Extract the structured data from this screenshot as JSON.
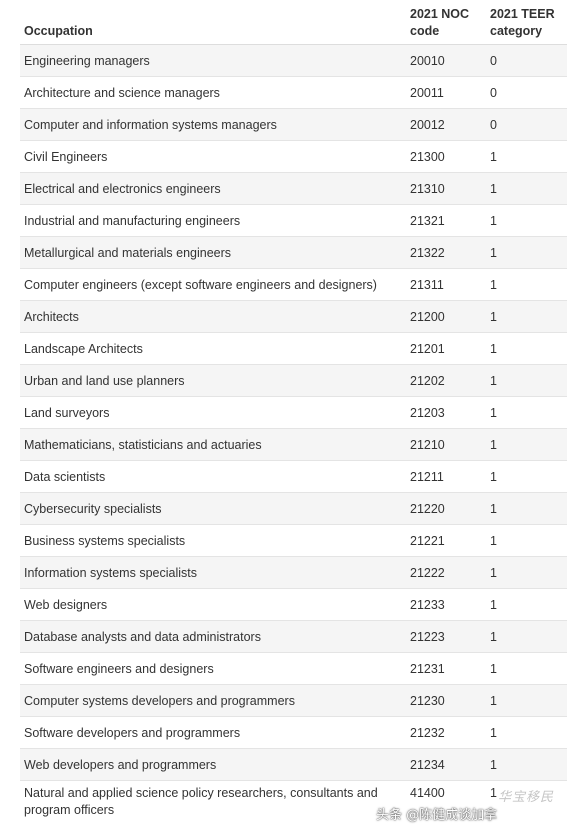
{
  "table": {
    "headers": {
      "occupation": "Occupation",
      "noc_code": "2021 NOC code",
      "teer": "2021 TEER category"
    },
    "rows": [
      {
        "occupation": "Engineering managers",
        "noc_code": "20010",
        "teer": "0"
      },
      {
        "occupation": "Architecture and science managers",
        "noc_code": "20011",
        "teer": "0"
      },
      {
        "occupation": "Computer and information systems managers",
        "noc_code": "20012",
        "teer": "0"
      },
      {
        "occupation": "Civil Engineers",
        "noc_code": "21300",
        "teer": "1"
      },
      {
        "occupation": "Electrical and electronics engineers",
        "noc_code": "21310",
        "teer": "1"
      },
      {
        "occupation": "Industrial and manufacturing engineers",
        "noc_code": "21321",
        "teer": "1"
      },
      {
        "occupation": "Metallurgical and materials engineers",
        "noc_code": "21322",
        "teer": "1"
      },
      {
        "occupation": "Computer engineers (except software engineers and designers)",
        "noc_code": "21311",
        "teer": "1"
      },
      {
        "occupation": "Architects",
        "noc_code": "21200",
        "teer": "1"
      },
      {
        "occupation": "Landscape Architects",
        "noc_code": "21201",
        "teer": "1"
      },
      {
        "occupation": "Urban and land use planners",
        "noc_code": "21202",
        "teer": "1"
      },
      {
        "occupation": "Land surveyors",
        "noc_code": "21203",
        "teer": "1"
      },
      {
        "occupation": "Mathematicians, statisticians and actuaries",
        "noc_code": "21210",
        "teer": "1"
      },
      {
        "occupation": "Data scientists",
        "noc_code": "21211",
        "teer": "1"
      },
      {
        "occupation": "Cybersecurity specialists",
        "noc_code": "21220",
        "teer": "1"
      },
      {
        "occupation": "Business systems specialists",
        "noc_code": "21221",
        "teer": "1"
      },
      {
        "occupation": "Information systems specialists",
        "noc_code": "21222",
        "teer": "1"
      },
      {
        "occupation": "Web designers",
        "noc_code": "21233",
        "teer": "1"
      },
      {
        "occupation": "Database analysts and data administrators",
        "noc_code": "21223",
        "teer": "1"
      },
      {
        "occupation": "Software engineers and designers",
        "noc_code": "21231",
        "teer": "1"
      },
      {
        "occupation": "Computer systems developers and programmers",
        "noc_code": "21230",
        "teer": "1"
      },
      {
        "occupation": "Software developers and programmers",
        "noc_code": "21232",
        "teer": "1"
      },
      {
        "occupation": "Web developers and programmers",
        "noc_code": "21234",
        "teer": "1"
      },
      {
        "occupation": "Natural and applied science policy researchers, consultants and program officers",
        "noc_code": "41400",
        "teer": "1"
      }
    ]
  },
  "watermarks": {
    "logo_text": "华宝移民",
    "source_text": "头条 @陈健成谈加拿"
  }
}
